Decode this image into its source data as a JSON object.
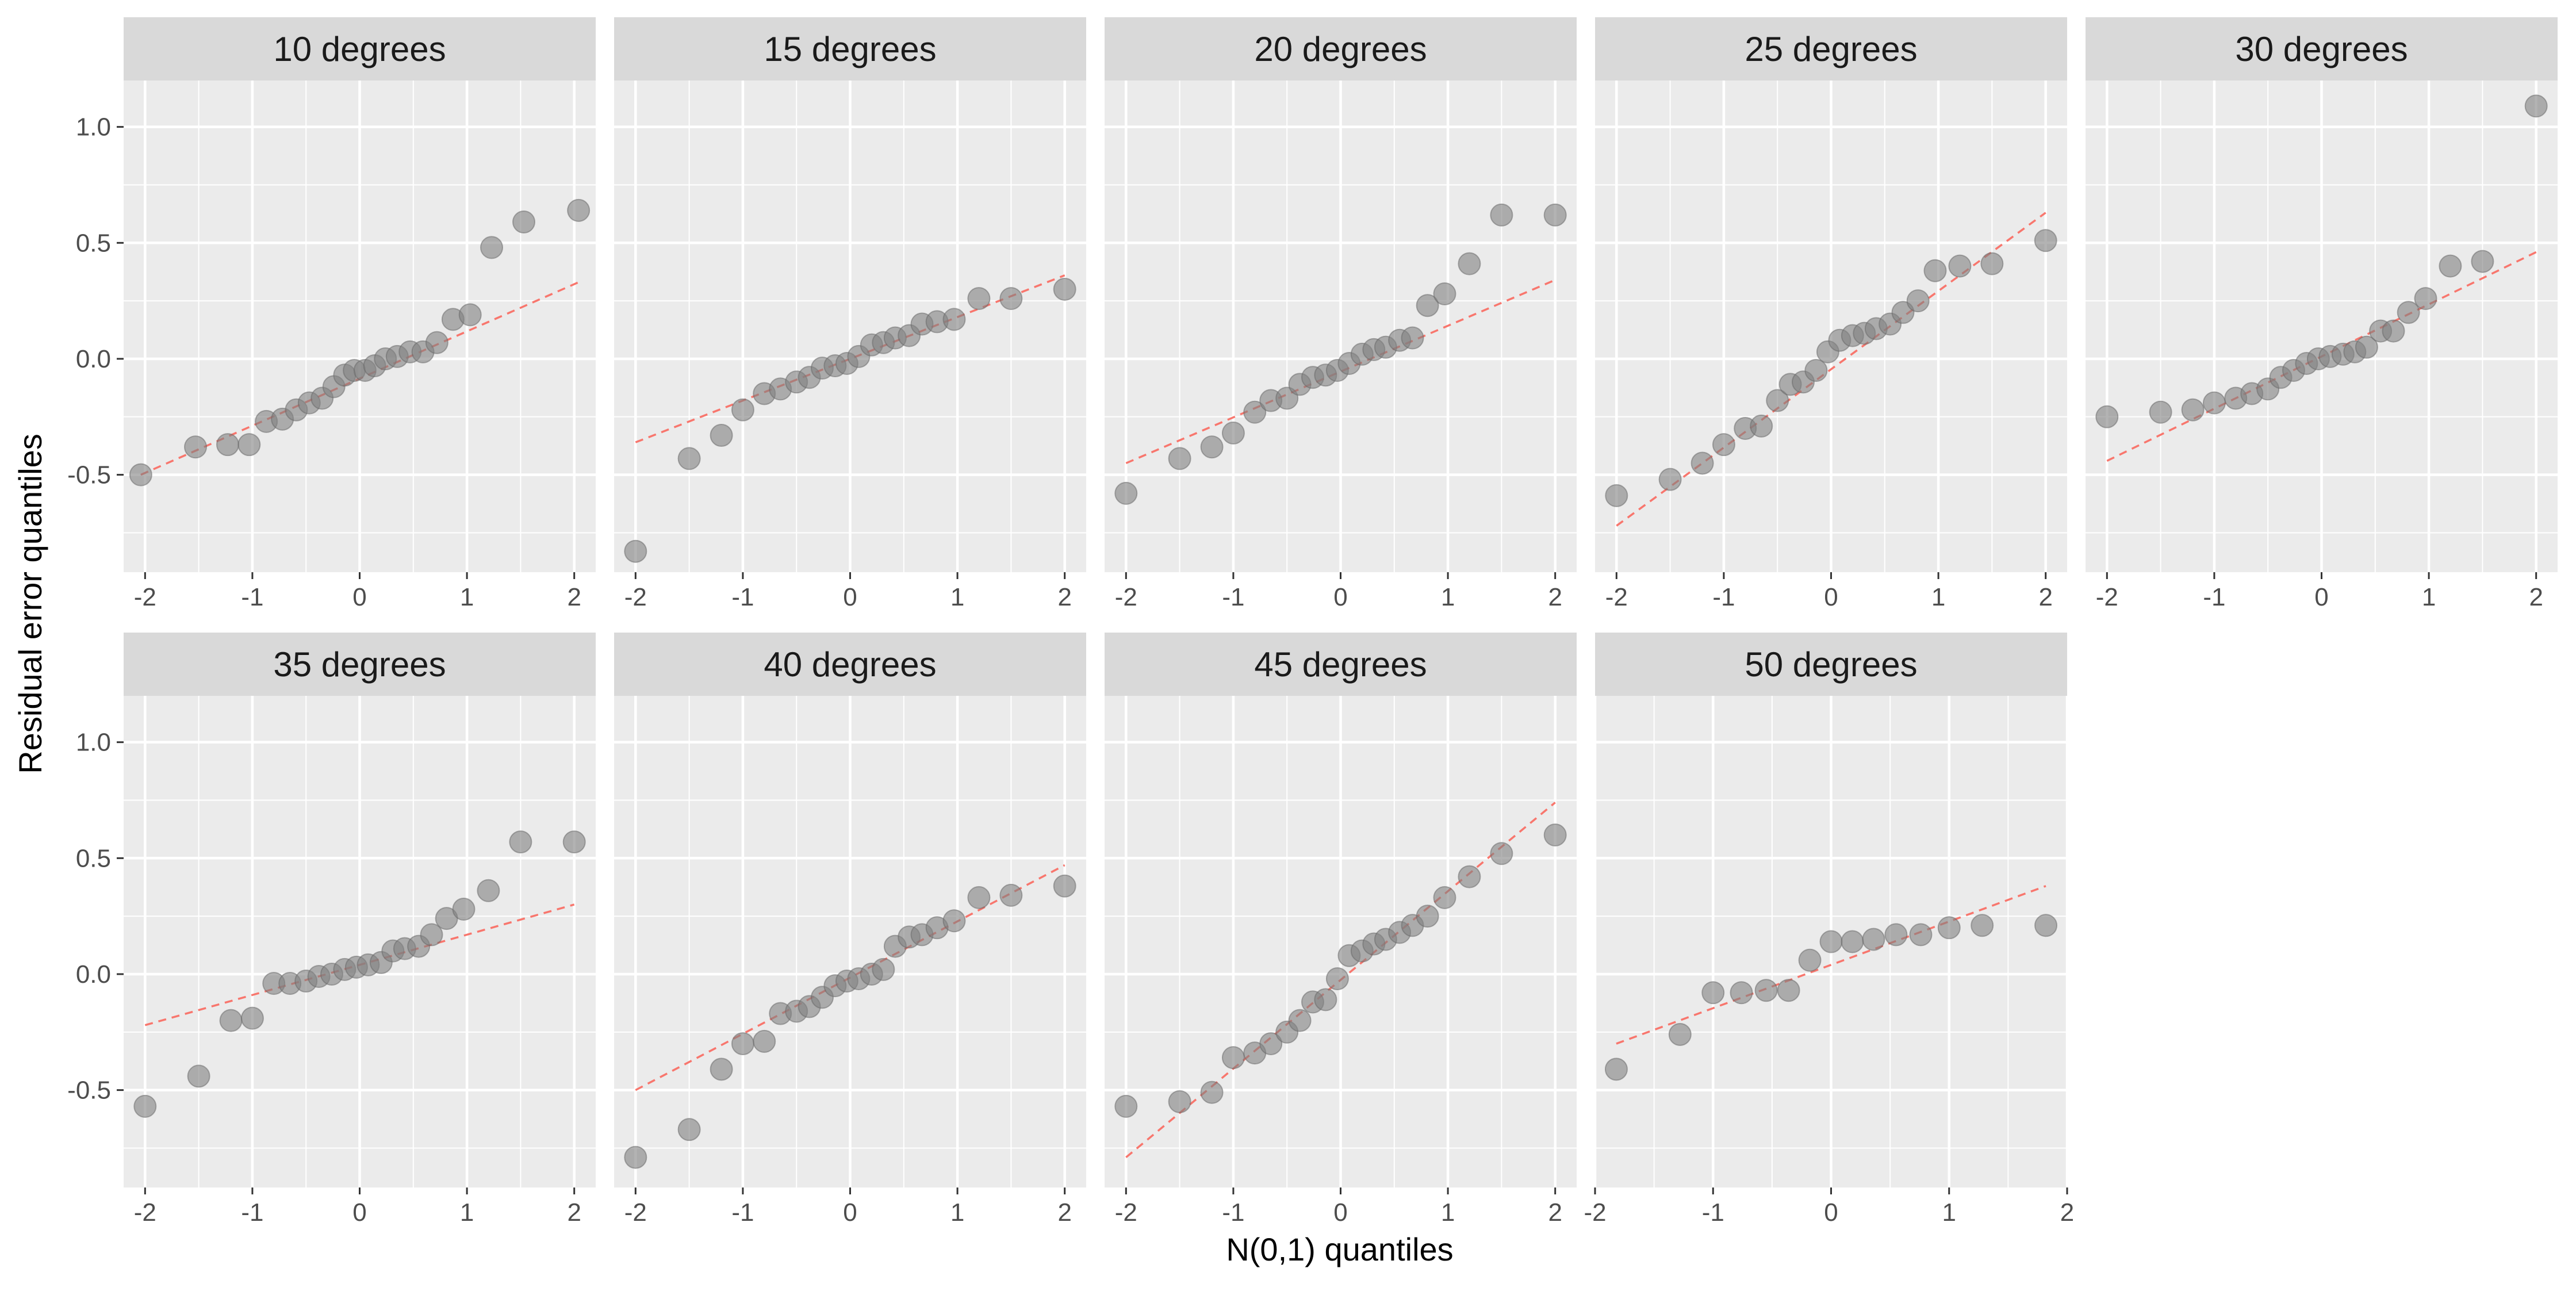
{
  "chart_data": {
    "type": "scatter",
    "xlabel": "N(0,1) quantiles",
    "ylabel": "Residual error quantiles",
    "ylim": [
      -0.92,
      1.2
    ],
    "y_ticks": [
      -0.5,
      0.0,
      0.5,
      1.0
    ],
    "y_tick_labels": [
      "-0.5",
      "0.0",
      "0.5",
      "1.0"
    ],
    "x_ticks": [
      -2,
      -1,
      0,
      1,
      2
    ],
    "x_tick_labels": [
      "-2",
      "-1",
      "0",
      "1",
      "2"
    ],
    "grid": true,
    "colors": {
      "panel_background": "#EBEBEB",
      "strip_background": "#D9D9D9",
      "grid": "#FFFFFF",
      "point": "#808080",
      "reference_line": "#F8766D",
      "tick_text": "#4D4D4D"
    },
    "panels": [
      {
        "title": "10 degrees",
        "xlim": [
          -2.2,
          2.2
        ],
        "line": {
          "x": [
            -2.04,
            2.04
          ],
          "y": [
            -0.5,
            0.33
          ]
        },
        "points": {
          "x": [
            -2.04,
            -1.53,
            -1.23,
            -1.03,
            -0.87,
            -0.72,
            -0.59,
            -0.47,
            -0.35,
            -0.24,
            -0.14,
            -0.05,
            0.05,
            0.14,
            0.24,
            0.35,
            0.47,
            0.59,
            0.72,
            0.87,
            1.03,
            1.23,
            1.53,
            2.04
          ],
          "y": [
            -0.5,
            -0.38,
            -0.37,
            -0.37,
            -0.27,
            -0.26,
            -0.22,
            -0.19,
            -0.17,
            -0.12,
            -0.07,
            -0.05,
            -0.05,
            -0.03,
            0.0,
            0.01,
            0.03,
            0.03,
            0.07,
            0.17,
            0.19,
            0.48,
            0.59,
            0.64
          ]
        }
      },
      {
        "title": "15 degrees",
        "xlim": [
          -2.2,
          2.2
        ],
        "line": {
          "x": [
            -2.0,
            2.0
          ],
          "y": [
            -0.36,
            0.36
          ]
        },
        "points": {
          "x": [
            -2.0,
            -1.5,
            -1.2,
            -1.0,
            -0.8,
            -0.65,
            -0.5,
            -0.38,
            -0.26,
            -0.14,
            -0.03,
            0.08,
            0.2,
            0.31,
            0.42,
            0.55,
            0.67,
            0.81,
            0.97,
            1.2,
            1.5,
            2.0
          ],
          "y": [
            -0.83,
            -0.43,
            -0.33,
            -0.22,
            -0.15,
            -0.13,
            -0.1,
            -0.08,
            -0.04,
            -0.03,
            -0.02,
            0.01,
            0.06,
            0.07,
            0.09,
            0.1,
            0.15,
            0.16,
            0.17,
            0.26,
            0.26,
            0.3
          ]
        }
      },
      {
        "title": "20 degrees",
        "xlim": [
          -2.2,
          2.2
        ],
        "line": {
          "x": [
            -2.0,
            2.0
          ],
          "y": [
            -0.45,
            0.34
          ]
        },
        "points": {
          "x": [
            -2.0,
            -1.5,
            -1.2,
            -1.0,
            -0.8,
            -0.65,
            -0.5,
            -0.38,
            -0.26,
            -0.14,
            -0.03,
            0.08,
            0.2,
            0.31,
            0.42,
            0.55,
            0.67,
            0.81,
            0.97,
            1.2,
            1.5,
            2.0
          ],
          "y": [
            -0.58,
            -0.43,
            -0.38,
            -0.32,
            -0.23,
            -0.18,
            -0.17,
            -0.11,
            -0.08,
            -0.07,
            -0.05,
            -0.02,
            0.02,
            0.04,
            0.05,
            0.08,
            0.09,
            0.23,
            0.28,
            0.41,
            0.62,
            0.62
          ]
        }
      },
      {
        "title": "25 degrees",
        "xlim": [
          -2.2,
          2.2
        ],
        "line": {
          "x": [
            -2.0,
            2.0
          ],
          "y": [
            -0.72,
            0.63
          ]
        },
        "points": {
          "x": [
            -2.0,
            -1.5,
            -1.2,
            -1.0,
            -0.8,
            -0.65,
            -0.5,
            -0.38,
            -0.26,
            -0.14,
            -0.03,
            0.08,
            0.2,
            0.31,
            0.42,
            0.55,
            0.67,
            0.81,
            0.97,
            1.2,
            1.5,
            2.0
          ],
          "y": [
            -0.59,
            -0.52,
            -0.45,
            -0.37,
            -0.3,
            -0.29,
            -0.18,
            -0.11,
            -0.1,
            -0.05,
            0.03,
            0.08,
            0.1,
            0.11,
            0.13,
            0.15,
            0.2,
            0.25,
            0.38,
            0.4,
            0.41,
            0.51
          ]
        }
      },
      {
        "title": "30 degrees",
        "xlim": [
          -2.2,
          2.2
        ],
        "line": {
          "x": [
            -2.0,
            2.0
          ],
          "y": [
            -0.44,
            0.46
          ]
        },
        "points": {
          "x": [
            -2.0,
            -1.5,
            -1.2,
            -1.0,
            -0.8,
            -0.65,
            -0.5,
            -0.38,
            -0.26,
            -0.14,
            -0.03,
            0.08,
            0.2,
            0.31,
            0.42,
            0.55,
            0.67,
            0.81,
            0.97,
            1.2,
            1.5,
            2.0
          ],
          "y": [
            -0.25,
            -0.23,
            -0.22,
            -0.19,
            -0.17,
            -0.15,
            -0.13,
            -0.08,
            -0.05,
            -0.02,
            0.0,
            0.01,
            0.02,
            0.03,
            0.05,
            0.12,
            0.12,
            0.2,
            0.26,
            0.4,
            0.42,
            1.09
          ]
        }
      },
      {
        "title": "35 degrees",
        "xlim": [
          -2.2,
          2.2
        ],
        "line": {
          "x": [
            -2.0,
            2.0
          ],
          "y": [
            -0.22,
            0.3
          ]
        },
        "points": {
          "x": [
            -2.0,
            -1.5,
            -1.2,
            -1.0,
            -0.8,
            -0.65,
            -0.5,
            -0.38,
            -0.26,
            -0.14,
            -0.03,
            0.08,
            0.2,
            0.31,
            0.42,
            0.55,
            0.67,
            0.81,
            0.97,
            1.2,
            1.5,
            2.0
          ],
          "y": [
            -0.57,
            -0.44,
            -0.2,
            -0.19,
            -0.04,
            -0.04,
            -0.03,
            -0.01,
            0.0,
            0.02,
            0.03,
            0.04,
            0.05,
            0.1,
            0.11,
            0.12,
            0.17,
            0.24,
            0.28,
            0.36,
            0.57,
            0.57
          ]
        }
      },
      {
        "title": "40 degrees",
        "xlim": [
          -2.2,
          2.2
        ],
        "line": {
          "x": [
            -2.0,
            2.0
          ],
          "y": [
            -0.5,
            0.47
          ]
        },
        "points": {
          "x": [
            -2.0,
            -1.5,
            -1.2,
            -1.0,
            -0.8,
            -0.65,
            -0.5,
            -0.38,
            -0.26,
            -0.14,
            -0.03,
            0.08,
            0.2,
            0.31,
            0.42,
            0.55,
            0.67,
            0.81,
            0.97,
            1.2,
            1.5,
            2.0
          ],
          "y": [
            -0.79,
            -0.67,
            -0.41,
            -0.3,
            -0.29,
            -0.17,
            -0.16,
            -0.14,
            -0.1,
            -0.05,
            -0.03,
            -0.02,
            0.0,
            0.02,
            0.12,
            0.16,
            0.17,
            0.2,
            0.23,
            0.33,
            0.34,
            0.38
          ]
        }
      },
      {
        "title": "45 degrees",
        "xlim": [
          -2.2,
          2.2
        ],
        "line": {
          "x": [
            -2.0,
            2.0
          ],
          "y": [
            -0.79,
            0.74
          ]
        },
        "points": {
          "x": [
            -2.0,
            -1.5,
            -1.2,
            -1.0,
            -0.8,
            -0.65,
            -0.5,
            -0.38,
            -0.26,
            -0.14,
            -0.03,
            0.08,
            0.2,
            0.31,
            0.42,
            0.55,
            0.67,
            0.81,
            0.97,
            1.2,
            1.5,
            2.0
          ],
          "y": [
            -0.57,
            -0.55,
            -0.51,
            -0.36,
            -0.34,
            -0.3,
            -0.25,
            -0.2,
            -0.12,
            -0.11,
            -0.02,
            0.08,
            0.1,
            0.13,
            0.15,
            0.18,
            0.21,
            0.25,
            0.33,
            0.42,
            0.52,
            0.6
          ]
        }
      },
      {
        "title": "50 degrees",
        "xlim": [
          -2.0,
          2.0
        ],
        "line": {
          "x": [
            -1.82,
            1.82
          ],
          "y": [
            -0.3,
            0.38
          ]
        },
        "points": {
          "x": [
            -1.82,
            -1.28,
            -1.0,
            -0.76,
            -0.55,
            -0.36,
            -0.18,
            0.0,
            0.18,
            0.36,
            0.55,
            0.76,
            1.0,
            1.28,
            1.82
          ],
          "y": [
            -0.41,
            -0.26,
            -0.08,
            -0.08,
            -0.07,
            -0.07,
            0.06,
            0.14,
            0.14,
            0.15,
            0.17,
            0.17,
            0.2,
            0.21,
            0.21
          ]
        }
      }
    ]
  }
}
